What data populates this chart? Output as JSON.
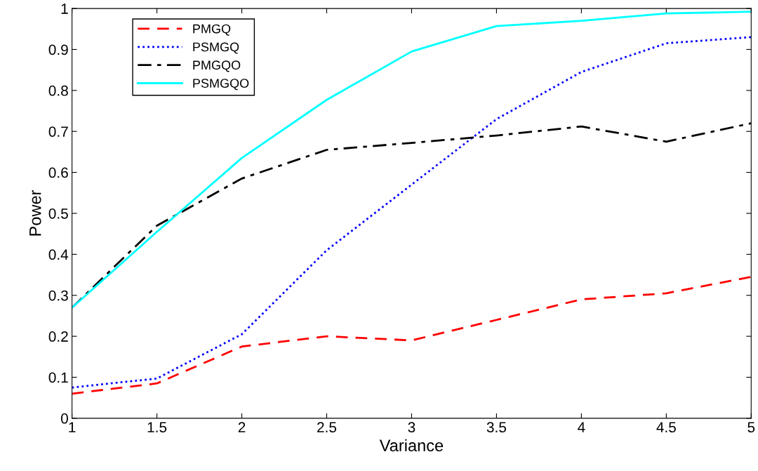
{
  "chart_data": {
    "type": "line",
    "xlabel": "Variance",
    "ylabel": "Power",
    "x": [
      1,
      1.5,
      2,
      2.5,
      3,
      3.5,
      4,
      4.5,
      5
    ],
    "xlim": [
      1,
      5
    ],
    "xticks": [
      1,
      1.5,
      2,
      2.5,
      3,
      3.5,
      4,
      4.5,
      5
    ],
    "ylim": [
      0,
      1
    ],
    "yticks": [
      0,
      0.1,
      0.2,
      0.3,
      0.4,
      0.5,
      0.6,
      0.7,
      0.8,
      0.9,
      1
    ],
    "grid": false,
    "legend": "top left",
    "marker": "none",
    "series": [
      {
        "name": "PMGQ",
        "color": "#ff0000",
        "line_style": "dashed",
        "values": [
          0.06,
          0.085,
          0.175,
          0.2,
          0.19,
          0.24,
          0.29,
          0.305,
          0.345
        ]
      },
      {
        "name": "PSMGQ",
        "color": "#0000ff",
        "line_style": "dotted",
        "values": [
          0.075,
          0.097,
          0.205,
          0.41,
          0.57,
          0.73,
          0.845,
          0.915,
          0.93
        ]
      },
      {
        "name": "PMGQO",
        "color": "#000000",
        "line_style": "dashdot",
        "values": [
          0.27,
          0.47,
          0.585,
          0.655,
          0.672,
          0.69,
          0.712,
          0.675,
          0.72
        ]
      },
      {
        "name": "PSMGQO",
        "color": "#00ffff",
        "line_style": "solid",
        "values": [
          0.27,
          0.455,
          0.635,
          0.777,
          0.895,
          0.957,
          0.97,
          0.988,
          0.992
        ]
      }
    ]
  }
}
